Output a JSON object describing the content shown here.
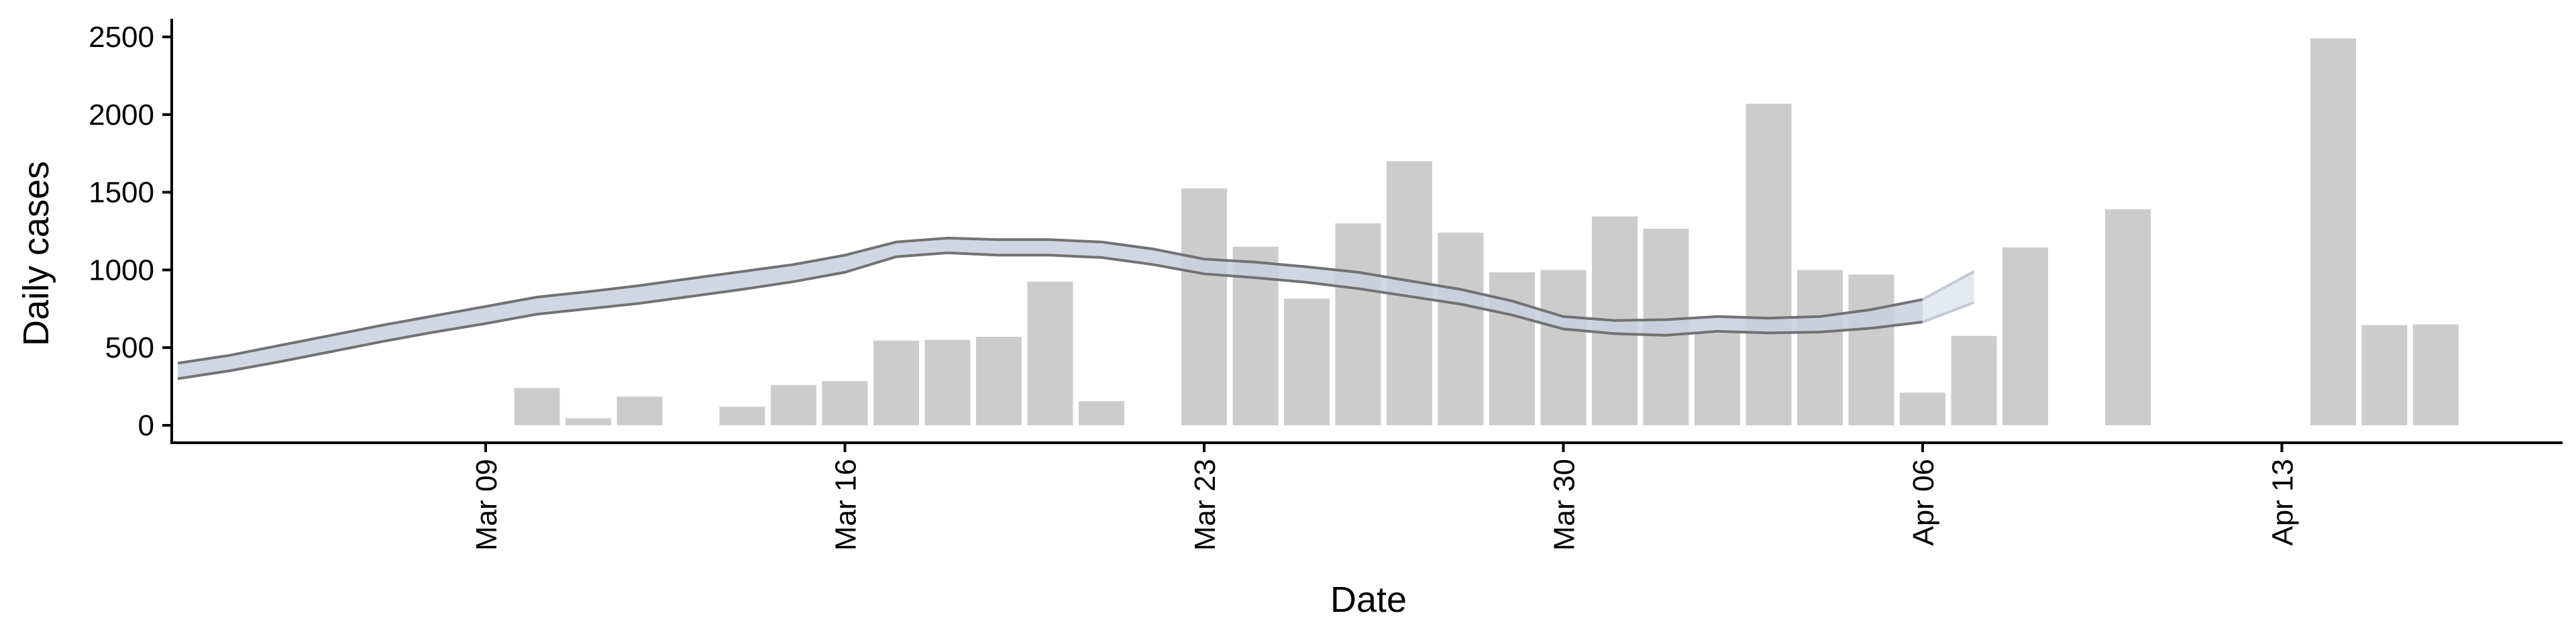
{
  "chart_data": {
    "type": "bar",
    "title": "",
    "xlabel": "Date",
    "ylabel": "Daily cases",
    "ylim": [
      0,
      2600
    ],
    "xlim": [
      "2020-03-02",
      "2020-04-20"
    ],
    "y_ticks": [
      0,
      500,
      1000,
      1500,
      2000,
      2500
    ],
    "x_ticks": [
      {
        "date": "2020-03-09",
        "label": "Mar 09"
      },
      {
        "date": "2020-03-16",
        "label": "Mar 16"
      },
      {
        "date": "2020-03-23",
        "label": "Mar 23"
      },
      {
        "date": "2020-03-30",
        "label": "Mar 30"
      },
      {
        "date": "2020-04-06",
        "label": "Apr 06"
      },
      {
        "date": "2020-04-13",
        "label": "Apr 13"
      }
    ],
    "grid": false,
    "colors": {
      "bars": "#cccccc",
      "ribbon_fill": "#c9cfdf",
      "ribbon_edge": "#727272",
      "ribbon_projection": "#dfe3ef",
      "axis": "#000000"
    },
    "bars": [
      {
        "date": "2020-03-10",
        "value": 240
      },
      {
        "date": "2020-03-11",
        "value": 45
      },
      {
        "date": "2020-03-12",
        "value": 185
      },
      {
        "date": "2020-03-14",
        "value": 120
      },
      {
        "date": "2020-03-15",
        "value": 260
      },
      {
        "date": "2020-03-16",
        "value": 285
      },
      {
        "date": "2020-03-17",
        "value": 545
      },
      {
        "date": "2020-03-18",
        "value": 550
      },
      {
        "date": "2020-03-19",
        "value": 570
      },
      {
        "date": "2020-03-20",
        "value": 925
      },
      {
        "date": "2020-03-21",
        "value": 155
      },
      {
        "date": "2020-03-23",
        "value": 1525
      },
      {
        "date": "2020-03-24",
        "value": 1150
      },
      {
        "date": "2020-03-25",
        "value": 815
      },
      {
        "date": "2020-03-26",
        "value": 1300
      },
      {
        "date": "2020-03-27",
        "value": 1700
      },
      {
        "date": "2020-03-28",
        "value": 1240
      },
      {
        "date": "2020-03-29",
        "value": 985
      },
      {
        "date": "2020-03-30",
        "value": 1000
      },
      {
        "date": "2020-03-31",
        "value": 1345
      },
      {
        "date": "2020-04-01",
        "value": 1265
      },
      {
        "date": "2020-04-02",
        "value": 595
      },
      {
        "date": "2020-04-03",
        "value": 2070
      },
      {
        "date": "2020-04-04",
        "value": 1000
      },
      {
        "date": "2020-04-05",
        "value": 970
      },
      {
        "date": "2020-04-06",
        "value": 210
      },
      {
        "date": "2020-04-07",
        "value": 575
      },
      {
        "date": "2020-04-08",
        "value": 1145
      },
      {
        "date": "2020-04-10",
        "value": 1390
      },
      {
        "date": "2020-04-14",
        "value": 2490
      },
      {
        "date": "2020-04-15",
        "value": 645
      },
      {
        "date": "2020-04-16",
        "value": 650
      }
    ],
    "ribbon": [
      {
        "date": "2020-03-03",
        "lower": 300,
        "upper": 400
      },
      {
        "date": "2020-03-04",
        "lower": 350,
        "upper": 450
      },
      {
        "date": "2020-03-05",
        "lower": 410,
        "upper": 515
      },
      {
        "date": "2020-03-06",
        "lower": 475,
        "upper": 580
      },
      {
        "date": "2020-03-07",
        "lower": 540,
        "upper": 645
      },
      {
        "date": "2020-03-08",
        "lower": 600,
        "upper": 705
      },
      {
        "date": "2020-03-09",
        "lower": 655,
        "upper": 765
      },
      {
        "date": "2020-03-10",
        "lower": 715,
        "upper": 825
      },
      {
        "date": "2020-03-11",
        "lower": 750,
        "upper": 860
      },
      {
        "date": "2020-03-12",
        "lower": 785,
        "upper": 900
      },
      {
        "date": "2020-03-13",
        "lower": 830,
        "upper": 945
      },
      {
        "date": "2020-03-14",
        "lower": 875,
        "upper": 990
      },
      {
        "date": "2020-03-15",
        "lower": 925,
        "upper": 1035
      },
      {
        "date": "2020-03-16",
        "lower": 985,
        "upper": 1095
      },
      {
        "date": "2020-03-17",
        "lower": 1085,
        "upper": 1180
      },
      {
        "date": "2020-03-18",
        "lower": 1110,
        "upper": 1205
      },
      {
        "date": "2020-03-19",
        "lower": 1095,
        "upper": 1195
      },
      {
        "date": "2020-03-20",
        "lower": 1095,
        "upper": 1195
      },
      {
        "date": "2020-03-21",
        "lower": 1080,
        "upper": 1180
      },
      {
        "date": "2020-03-22",
        "lower": 1035,
        "upper": 1135
      },
      {
        "date": "2020-03-23",
        "lower": 975,
        "upper": 1070
      },
      {
        "date": "2020-03-24",
        "lower": 950,
        "upper": 1050
      },
      {
        "date": "2020-03-25",
        "lower": 920,
        "upper": 1020
      },
      {
        "date": "2020-03-26",
        "lower": 880,
        "upper": 985
      },
      {
        "date": "2020-03-27",
        "lower": 830,
        "upper": 930
      },
      {
        "date": "2020-03-28",
        "lower": 780,
        "upper": 875
      },
      {
        "date": "2020-03-29",
        "lower": 710,
        "upper": 800
      },
      {
        "date": "2020-03-30",
        "lower": 620,
        "upper": 700
      },
      {
        "date": "2020-03-31",
        "lower": 590,
        "upper": 675
      },
      {
        "date": "2020-04-01",
        "lower": 580,
        "upper": 680
      },
      {
        "date": "2020-04-02",
        "lower": 605,
        "upper": 700
      },
      {
        "date": "2020-04-03",
        "lower": 595,
        "upper": 690
      },
      {
        "date": "2020-04-04",
        "lower": 600,
        "upper": 700
      },
      {
        "date": "2020-04-05",
        "lower": 625,
        "upper": 745
      },
      {
        "date": "2020-04-06",
        "lower": 665,
        "upper": 810
      }
    ],
    "projection": [
      {
        "date": "2020-04-06",
        "lower": 665,
        "upper": 810
      },
      {
        "date": "2020-04-07",
        "lower": 790,
        "upper": 990
      }
    ]
  }
}
